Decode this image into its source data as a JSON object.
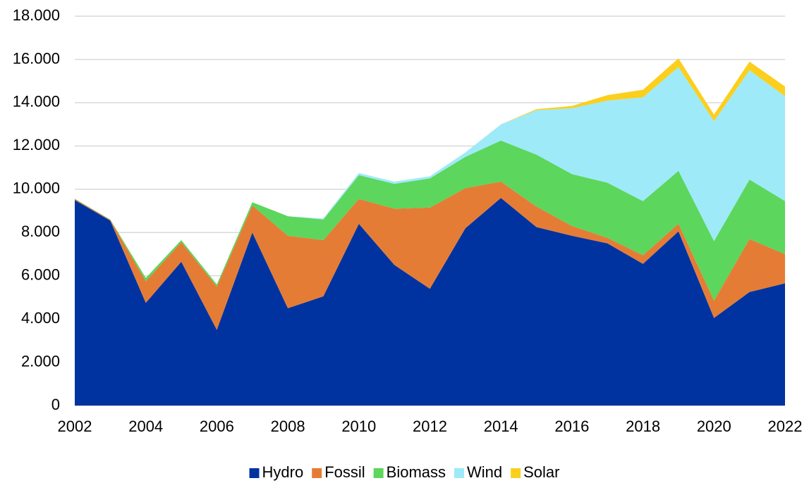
{
  "chart_data": {
    "type": "stacked_area",
    "x": [
      2002,
      2003,
      2004,
      2005,
      2006,
      2007,
      2008,
      2009,
      2010,
      2011,
      2012,
      2013,
      2014,
      2015,
      2016,
      2017,
      2018,
      2019,
      2020,
      2021,
      2022
    ],
    "series": [
      {
        "name": "Hydro",
        "color": "#0033a0",
        "values": [
          9500,
          8550,
          4750,
          6650,
          3500,
          8000,
          4500,
          5050,
          8400,
          6500,
          5400,
          8200,
          9600,
          8250,
          7850,
          7500,
          6550,
          8050,
          4050,
          5250,
          5650
        ]
      },
      {
        "name": "Fossil",
        "color": "#e57c35",
        "values": [
          50,
          30,
          1000,
          900,
          2000,
          1250,
          3350,
          2600,
          1150,
          2600,
          3750,
          1850,
          750,
          950,
          450,
          250,
          400,
          350,
          800,
          2450,
          1350
        ]
      },
      {
        "name": "Biomass",
        "color": "#5cd65c",
        "values": [
          10,
          20,
          150,
          100,
          100,
          150,
          900,
          950,
          1100,
          1150,
          1350,
          1450,
          1900,
          2400,
          2400,
          2550,
          2500,
          2450,
          2750,
          2750,
          2450
        ]
      },
      {
        "name": "Wind",
        "color": "#9eeaf9",
        "values": [
          0,
          0,
          0,
          0,
          0,
          0,
          0,
          50,
          100,
          100,
          100,
          200,
          750,
          2050,
          3050,
          3800,
          4800,
          4800,
          5550,
          5050,
          4850
        ]
      },
      {
        "name": "Solar",
        "color": "#fbcf1c",
        "values": [
          0,
          0,
          0,
          0,
          0,
          0,
          0,
          0,
          0,
          0,
          0,
          0,
          0,
          50,
          100,
          250,
          350,
          400,
          300,
          400,
          450
        ]
      }
    ],
    "xlim": [
      2002,
      2022
    ],
    "xticks": [
      2002,
      2004,
      2006,
      2008,
      2010,
      2012,
      2014,
      2016,
      2018,
      2020,
      2022
    ],
    "ylim": [
      0,
      18000
    ],
    "yticks": [
      0,
      {
        "value": 2000,
        "label": "2.000"
      },
      {
        "value": 4000,
        "label": "4.000"
      },
      {
        "value": 6000,
        "label": "6.000"
      },
      {
        "value": 8000,
        "label": "8.000"
      },
      {
        "value": 10000,
        "label": "10.000"
      },
      {
        "value": 12000,
        "label": "12.000"
      },
      {
        "value": 14000,
        "label": "14.000"
      },
      {
        "value": 16000,
        "label": "16.000"
      },
      {
        "value": 18000,
        "label": "18.000"
      }
    ],
    "grid": true,
    "legend": "bottom"
  }
}
